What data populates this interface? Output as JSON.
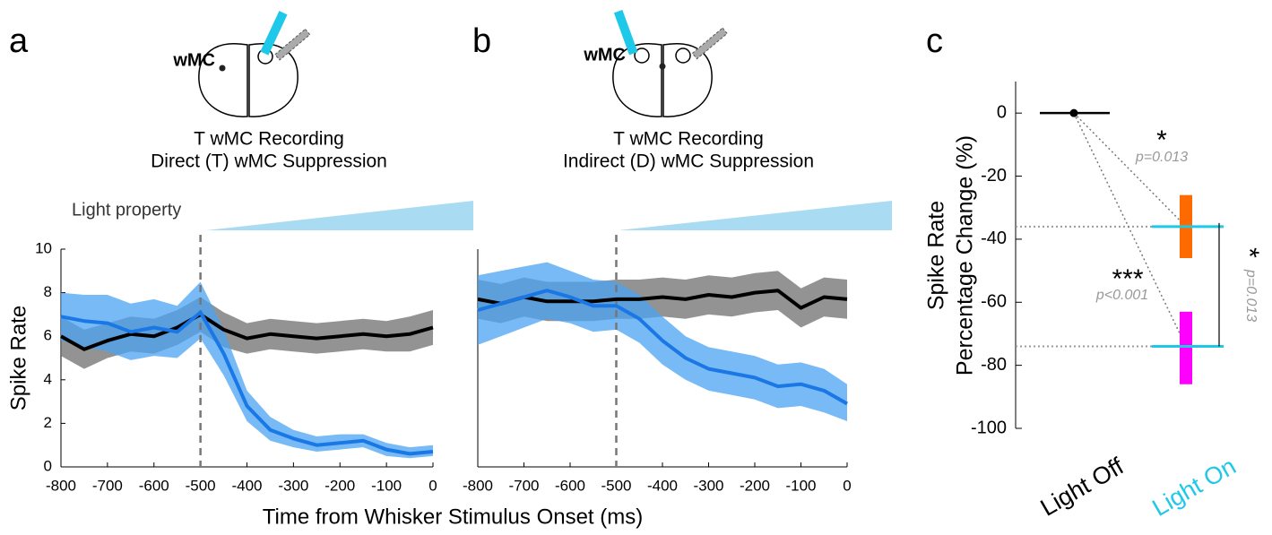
{
  "chart_data": [
    {
      "type": "line",
      "panel": "a",
      "diagram_label": "wMC",
      "subtitle": [
        "T wMC Recording",
        "Direct (T) wMC Suppression"
      ],
      "note": "Light property",
      "ylabel": "Spike Rate",
      "xlabel": "Time from Whisker Stimulus Onset (ms)",
      "xlim": [
        -800,
        0
      ],
      "ylim": [
        0,
        10
      ],
      "xticks": [
        -800,
        -700,
        -600,
        -500,
        -400,
        -300,
        -200,
        -100,
        0
      ],
      "yticks": [
        0,
        2,
        4,
        6,
        8,
        10
      ],
      "vline": -500,
      "x": [
        -800,
        -750,
        -700,
        -650,
        -600,
        -550,
        -500,
        -450,
        -400,
        -350,
        -300,
        -250,
        -200,
        -150,
        -100,
        -50,
        0
      ],
      "series": [
        {
          "color": "#000000",
          "band_color": "#6f6f6f",
          "values": [
            6.0,
            5.4,
            5.8,
            6.1,
            6.0,
            6.4,
            7.0,
            6.3,
            5.9,
            6.1,
            6.0,
            5.9,
            6.0,
            6.1,
            6.0,
            6.1,
            6.4
          ],
          "lower": [
            5.1,
            4.5,
            5.0,
            5.3,
            5.2,
            5.6,
            6.2,
            5.5,
            5.2,
            5.4,
            5.3,
            5.2,
            5.3,
            5.4,
            5.3,
            5.3,
            5.6
          ],
          "upper": [
            6.9,
            6.3,
            6.6,
            6.9,
            6.8,
            7.2,
            7.8,
            7.1,
            6.6,
            6.8,
            6.7,
            6.6,
            6.7,
            6.8,
            6.7,
            6.9,
            7.2
          ]
        },
        {
          "color": "#1a78e6",
          "band_color": "#4aa3f2",
          "values": [
            6.9,
            6.7,
            6.6,
            6.2,
            6.4,
            6.2,
            7.1,
            5.2,
            2.8,
            1.7,
            1.3,
            1.0,
            1.1,
            1.2,
            0.8,
            0.6,
            0.7
          ],
          "lower": [
            5.8,
            5.5,
            5.3,
            4.9,
            5.1,
            5.0,
            5.9,
            4.2,
            2.1,
            1.2,
            0.9,
            0.7,
            0.8,
            0.9,
            0.5,
            0.4,
            0.5
          ],
          "upper": [
            8.0,
            7.9,
            7.9,
            7.5,
            7.7,
            7.4,
            8.5,
            6.3,
            3.5,
            2.3,
            1.7,
            1.4,
            1.5,
            1.5,
            1.1,
            0.9,
            1.0
          ]
        }
      ]
    },
    {
      "type": "line",
      "panel": "b",
      "diagram_label": "wMC",
      "subtitle": [
        "T wMC Recording",
        "Indirect (D) wMC Suppression"
      ],
      "xlim": [
        -800,
        0
      ],
      "ylim": [
        0,
        10
      ],
      "xticks": [
        -800,
        -700,
        -600,
        -500,
        -400,
        -300,
        -200,
        -100,
        0
      ],
      "vline": -500,
      "x": [
        -800,
        -750,
        -700,
        -650,
        -600,
        -550,
        -500,
        -450,
        -400,
        -350,
        -300,
        -250,
        -200,
        -150,
        -100,
        -50,
        0
      ],
      "series": [
        {
          "color": "#000000",
          "band_color": "#6f6f6f",
          "values": [
            7.7,
            7.5,
            7.8,
            7.6,
            7.6,
            7.6,
            7.7,
            7.7,
            7.8,
            7.7,
            7.9,
            7.8,
            8.0,
            8.1,
            7.3,
            7.8,
            7.7
          ],
          "lower": [
            6.8,
            6.6,
            6.9,
            6.7,
            6.7,
            6.7,
            6.8,
            6.8,
            6.9,
            6.8,
            7.0,
            6.9,
            7.1,
            7.2,
            6.4,
            6.9,
            6.8
          ],
          "upper": [
            8.6,
            8.4,
            8.7,
            8.5,
            8.5,
            8.5,
            8.6,
            8.6,
            8.7,
            8.6,
            8.8,
            8.7,
            8.9,
            9.0,
            8.2,
            8.7,
            8.6
          ]
        },
        {
          "color": "#1a78e6",
          "band_color": "#4aa3f2",
          "values": [
            7.2,
            7.5,
            7.8,
            8.1,
            7.8,
            7.4,
            7.4,
            6.8,
            5.8,
            5.0,
            4.5,
            4.3,
            4.1,
            3.7,
            3.8,
            3.5,
            2.9
          ],
          "lower": [
            5.6,
            6.0,
            6.4,
            6.8,
            6.6,
            6.2,
            6.3,
            5.7,
            4.7,
            4.0,
            3.5,
            3.3,
            3.1,
            2.7,
            2.8,
            2.5,
            2.1
          ],
          "upper": [
            8.8,
            9.0,
            9.2,
            9.4,
            9.0,
            8.6,
            8.5,
            7.9,
            6.9,
            6.0,
            5.5,
            5.3,
            5.1,
            4.7,
            4.8,
            4.5,
            3.8
          ]
        }
      ]
    },
    {
      "type": "errorbar",
      "panel": "c",
      "ylabel": [
        "Spike Rate",
        "Percentage Change (%)"
      ],
      "categories": [
        "Light Off",
        "Light On"
      ],
      "category_colors": [
        "#000000",
        "#1ec8e8"
      ],
      "ylim": [
        -100,
        10
      ],
      "yticks": [
        0,
        -20,
        -40,
        -60,
        -80,
        -100
      ],
      "baseline": {
        "value": 0,
        "color": "#000000"
      },
      "bars": [
        {
          "mean": -36,
          "low": -46,
          "high": -26,
          "color": "#ff6a00",
          "mean_color": "#1ec8e8"
        },
        {
          "mean": -74,
          "low": -86,
          "high": -63,
          "color": "#ff00ff",
          "mean_color": "#1ec8e8"
        }
      ],
      "annotations": [
        "*",
        "p=0.013",
        "***",
        "p<0.001",
        "*",
        "p=0.013"
      ]
    }
  ]
}
